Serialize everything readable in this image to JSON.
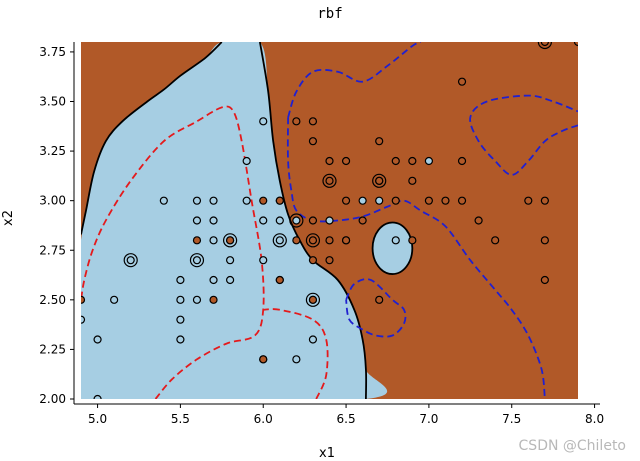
{
  "chart_data": {
    "type": "scatter",
    "title": "rbf",
    "xlabel": "x1",
    "ylabel": "x2",
    "xlim": [
      4.9,
      7.9
    ],
    "ylim": [
      2.0,
      3.8
    ],
    "x_ticks": [
      "5.0",
      "5.5",
      "6.0",
      "6.5",
      "7.0",
      "7.5",
      "8.0"
    ],
    "y_ticks": [
      "2.00",
      "2.25",
      "2.50",
      "2.75",
      "3.00",
      "3.25",
      "3.50",
      "3.75"
    ],
    "grid": false,
    "colors": {
      "class_0": "#a6cee3",
      "class_1": "#b15928",
      "decision_boundary": "#000000",
      "margin_negative": "#e41a1c",
      "margin_positive": "#2020d0"
    },
    "series": [
      {
        "class": 0,
        "points": [
          [
            4.9,
            2.4
          ],
          [
            5.0,
            2.3
          ],
          [
            5.0,
            2.0
          ],
          [
            5.1,
            2.5
          ],
          [
            5.2,
            2.7
          ],
          [
            5.4,
            3.0
          ],
          [
            5.5,
            2.6
          ],
          [
            5.5,
            2.5
          ],
          [
            5.5,
            2.4
          ],
          [
            5.5,
            2.3
          ],
          [
            5.6,
            3.0
          ],
          [
            5.6,
            2.9
          ],
          [
            5.6,
            2.7
          ],
          [
            5.6,
            2.5
          ],
          [
            5.7,
            3.0
          ],
          [
            5.7,
            2.9
          ],
          [
            5.7,
            2.8
          ],
          [
            5.7,
            2.6
          ],
          [
            5.8,
            2.7
          ],
          [
            5.8,
            2.6
          ],
          [
            5.9,
            3.2
          ],
          [
            5.9,
            3.0
          ],
          [
            6.0,
            3.4
          ],
          [
            6.0,
            2.9
          ],
          [
            6.0,
            2.7
          ],
          [
            6.0,
            2.2
          ],
          [
            6.1,
            3.0
          ],
          [
            6.1,
            2.9
          ],
          [
            6.1,
            2.8
          ],
          [
            6.2,
            2.9
          ],
          [
            6.2,
            2.2
          ],
          [
            6.3,
            2.5
          ],
          [
            6.3,
            2.3
          ],
          [
            6.4,
            2.9
          ],
          [
            6.5,
            2.8
          ],
          [
            6.6,
            3.0
          ],
          [
            6.7,
            3.0
          ],
          [
            6.8,
            2.8
          ],
          [
            7.0,
            3.2
          ],
          [
            6.7,
            3.1
          ],
          [
            5.8,
            2.8
          ],
          [
            6.1,
            2.6
          ]
        ]
      },
      {
        "class": 1,
        "points": [
          [
            4.9,
            2.5
          ],
          [
            5.6,
            2.8
          ],
          [
            5.7,
            2.5
          ],
          [
            5.8,
            2.8
          ],
          [
            6.0,
            3.0
          ],
          [
            6.0,
            2.2
          ],
          [
            6.1,
            2.6
          ],
          [
            6.1,
            3.0
          ],
          [
            6.2,
            3.4
          ],
          [
            6.2,
            2.8
          ],
          [
            6.3,
            3.4
          ],
          [
            6.3,
            3.3
          ],
          [
            6.3,
            2.9
          ],
          [
            6.3,
            2.8
          ],
          [
            6.3,
            2.7
          ],
          [
            6.3,
            2.5
          ],
          [
            6.4,
            3.2
          ],
          [
            6.4,
            3.1
          ],
          [
            6.4,
            2.8
          ],
          [
            6.4,
            2.7
          ],
          [
            6.5,
            3.2
          ],
          [
            6.5,
            3.0
          ],
          [
            6.5,
            2.8
          ],
          [
            6.6,
            2.9
          ],
          [
            6.7,
            3.3
          ],
          [
            6.7,
            3.1
          ],
          [
            6.7,
            2.5
          ],
          [
            6.8,
            3.2
          ],
          [
            6.8,
            3.0
          ],
          [
            6.9,
            3.2
          ],
          [
            6.9,
            3.1
          ],
          [
            7.0,
            3.0
          ],
          [
            7.1,
            3.0
          ],
          [
            7.2,
            3.6
          ],
          [
            7.2,
            3.2
          ],
          [
            7.2,
            3.0
          ],
          [
            7.3,
            2.9
          ],
          [
            7.4,
            2.8
          ],
          [
            7.6,
            3.0
          ],
          [
            7.7,
            3.8
          ],
          [
            7.7,
            3.0
          ],
          [
            7.7,
            2.8
          ],
          [
            7.7,
            2.6
          ],
          [
            7.9,
            3.8
          ],
          [
            6.9,
            2.8
          ]
        ]
      }
    ],
    "support_vectors": [
      [
        5.2,
        2.7
      ],
      [
        5.6,
        2.7
      ],
      [
        5.8,
        2.8
      ],
      [
        6.1,
        2.8
      ],
      [
        6.2,
        2.9
      ],
      [
        6.3,
        2.8
      ],
      [
        6.3,
        2.5
      ],
      [
        6.4,
        3.1
      ],
      [
        6.7,
        3.1
      ],
      [
        7.7,
        3.8
      ]
    ],
    "regions": {
      "class_0_region": [
        [
          4.9,
          2.8
        ],
        [
          4.93,
          2.95
        ],
        [
          4.98,
          3.15
        ],
        [
          5.05,
          3.3
        ],
        [
          5.15,
          3.4
        ],
        [
          5.3,
          3.5
        ],
        [
          5.4,
          3.56
        ],
        [
          5.5,
          3.63
        ],
        [
          5.65,
          3.72
        ],
        [
          5.75,
          3.8
        ],
        [
          5.98,
          3.8
        ],
        [
          6.03,
          3.55
        ],
        [
          6.06,
          3.3
        ],
        [
          6.1,
          3.1
        ],
        [
          6.15,
          2.93
        ],
        [
          6.22,
          2.8
        ],
        [
          6.3,
          2.7
        ],
        [
          6.45,
          2.6
        ],
        [
          6.55,
          2.45
        ],
        [
          6.6,
          2.3
        ],
        [
          6.62,
          2.15
        ],
        [
          6.62,
          2.0
        ],
        [
          4.9,
          2.0
        ]
      ],
      "island_class_0": {
        "center": [
          6.78,
          2.76
        ],
        "rx": [
          0.12,
          0.13
        ]
      }
    },
    "boundary_lines": {
      "decision_boundary": [
        [
          4.9,
          2.83
        ],
        [
          4.93,
          2.95
        ],
        [
          4.98,
          3.15
        ],
        [
          5.05,
          3.3
        ],
        [
          5.15,
          3.4
        ],
        [
          5.3,
          3.5
        ],
        [
          5.4,
          3.56
        ],
        [
          5.5,
          3.63
        ],
        [
          5.65,
          3.72
        ],
        [
          5.75,
          3.8
        ]
      ],
      "decision_boundary_right": [
        [
          5.98,
          3.8
        ],
        [
          6.03,
          3.55
        ],
        [
          6.06,
          3.3
        ],
        [
          6.1,
          3.1
        ],
        [
          6.15,
          2.93
        ],
        [
          6.22,
          2.8
        ],
        [
          6.3,
          2.7
        ],
        [
          6.45,
          2.6
        ],
        [
          6.55,
          2.45
        ],
        [
          6.6,
          2.3
        ],
        [
          6.62,
          2.15
        ],
        [
          6.62,
          2.0
        ]
      ],
      "margin_negative": [
        [
          5.35,
          2.0
        ],
        [
          5.45,
          2.1
        ],
        [
          5.6,
          2.2
        ],
        [
          5.78,
          2.28
        ],
        [
          5.95,
          2.32
        ],
        [
          6.0,
          2.45
        ],
        [
          5.99,
          2.7
        ],
        [
          5.93,
          3.0
        ],
        [
          5.87,
          3.3
        ],
        [
          5.82,
          3.45
        ],
        [
          5.75,
          3.47
        ],
        [
          5.6,
          3.4
        ],
        [
          5.4,
          3.3
        ],
        [
          5.2,
          3.1
        ],
        [
          5.05,
          2.9
        ],
        [
          4.97,
          2.75
        ],
        [
          4.92,
          2.6
        ],
        [
          4.9,
          2.5
        ]
      ],
      "margin_negative_2": [
        [
          6.32,
          2.0
        ],
        [
          6.38,
          2.12
        ],
        [
          6.38,
          2.3
        ],
        [
          6.3,
          2.4
        ],
        [
          6.1,
          2.45
        ],
        [
          6.0,
          2.45
        ]
      ],
      "margin_positive": [
        [
          6.15,
          3.42
        ],
        [
          6.2,
          3.55
        ],
        [
          6.3,
          3.65
        ],
        [
          6.45,
          3.65
        ],
        [
          6.6,
          3.6
        ],
        [
          6.75,
          3.68
        ],
        [
          6.9,
          3.78
        ],
        [
          6.95,
          3.8
        ]
      ],
      "margin_positive_2": [
        [
          6.15,
          3.42
        ],
        [
          6.15,
          3.2
        ],
        [
          6.17,
          3.05
        ],
        [
          6.2,
          2.95
        ],
        [
          6.3,
          2.9
        ],
        [
          6.45,
          2.9
        ],
        [
          6.6,
          2.92
        ],
        [
          6.75,
          2.97
        ],
        [
          6.85,
          3.0
        ],
        [
          6.95,
          2.95
        ],
        [
          7.1,
          2.87
        ],
        [
          7.25,
          2.7
        ],
        [
          7.4,
          2.55
        ],
        [
          7.5,
          2.45
        ],
        [
          7.6,
          2.32
        ],
        [
          7.68,
          2.15
        ],
        [
          7.7,
          2.0
        ]
      ],
      "margin_positive_3": [
        [
          7.9,
          3.38
        ],
        [
          7.8,
          3.35
        ],
        [
          7.7,
          3.3
        ],
        [
          7.6,
          3.2
        ],
        [
          7.5,
          3.13
        ],
        [
          7.4,
          3.2
        ],
        [
          7.3,
          3.3
        ],
        [
          7.25,
          3.42
        ],
        [
          7.35,
          3.5
        ],
        [
          7.6,
          3.53
        ],
        [
          7.75,
          3.5
        ],
        [
          7.9,
          3.45
        ]
      ],
      "margin_positive_island": [
        [
          6.5,
          2.5
        ],
        [
          6.55,
          2.58
        ],
        [
          6.65,
          2.6
        ],
        [
          6.78,
          2.5
        ],
        [
          6.85,
          2.45
        ],
        [
          6.85,
          2.38
        ],
        [
          6.78,
          2.32
        ],
        [
          6.68,
          2.32
        ],
        [
          6.6,
          2.35
        ],
        [
          6.52,
          2.4
        ],
        [
          6.5,
          2.5
        ]
      ]
    }
  },
  "watermark": "CSDN @Chileto"
}
